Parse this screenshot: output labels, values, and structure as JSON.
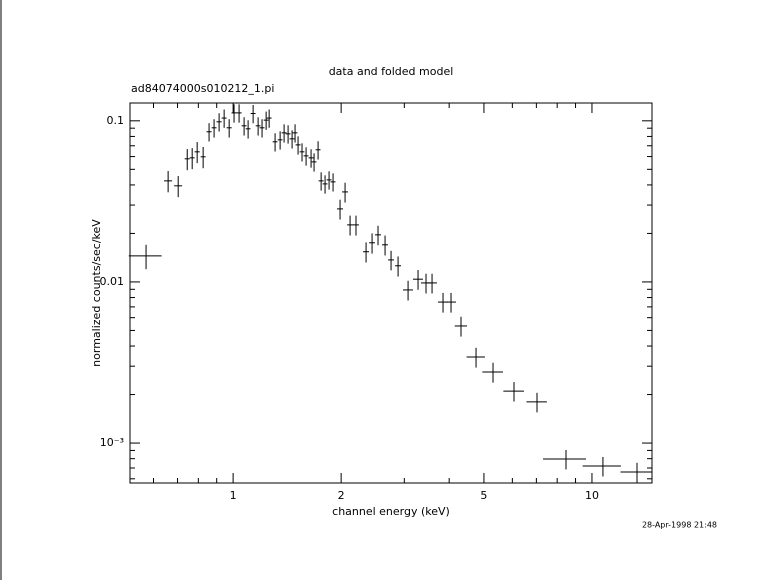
{
  "chart_data": {
    "type": "scatter",
    "title": "data and folded model",
    "subtitle": "ad84074000s010212_1.pi",
    "x_label": "channel energy (keV)",
    "y_label": "normalized counts/sec/keV",
    "timestamp": "28-Apr-1998 21:48",
    "xscale": "log",
    "yscale": "log",
    "color": "#000000",
    "xlim": [
      0.516,
      14.7
    ],
    "ylim": [
      0.000565,
      0.129
    ],
    "xticks": [
      1,
      2,
      5,
      10
    ],
    "xminorticks": [
      0.6,
      0.7,
      0.8,
      0.9,
      3,
      4,
      6,
      7,
      8,
      9
    ],
    "yticks": [
      {
        "value": 0.001,
        "label": "10⁻³"
      },
      0.01,
      0.1
    ],
    "yminorticks": [
      0.0006,
      0.0007,
      0.0008,
      0.0009,
      0.002,
      0.003,
      0.004,
      0.005,
      0.006,
      0.007,
      0.008,
      0.009,
      0.02,
      0.03,
      0.04,
      0.05,
      0.06,
      0.07,
      0.08,
      0.09
    ],
    "x": [
      0.572,
      0.659,
      0.703,
      0.745,
      0.769,
      0.794,
      0.825,
      0.857,
      0.885,
      0.914,
      0.944,
      0.975,
      1.006,
      1.039,
      1.073,
      1.101,
      1.137,
      1.174,
      1.204,
      1.236,
      1.26,
      1.309,
      1.352,
      1.387,
      1.423,
      1.46,
      1.488,
      1.517,
      1.556,
      1.597,
      1.649,
      1.681,
      1.725,
      1.759,
      1.804,
      1.851,
      1.899,
      1.986,
      2.051,
      2.118,
      2.2,
      2.347,
      2.439,
      2.534,
      2.651,
      2.755,
      2.882,
      3.073,
      3.276,
      3.448,
      3.584,
      3.846,
      4.048,
      4.316,
      4.753,
      5.3,
      6.064,
      7.028,
      8.466,
      10.73,
      13.35
    ],
    "xerr": [
      0.06,
      0.017,
      0.018,
      0.012,
      0.012,
      0.013,
      0.013,
      0.014,
      0.014,
      0.015,
      0.015,
      0.016,
      0.016,
      0.017,
      0.017,
      0.017,
      0.018,
      0.018,
      0.019,
      0.019,
      0.02,
      0.02,
      0.021,
      0.022,
      0.022,
      0.023,
      0.023,
      0.024,
      0.024,
      0.025,
      0.026,
      0.026,
      0.027,
      0.028,
      0.028,
      0.029,
      0.03,
      0.038,
      0.039,
      0.04,
      0.042,
      0.045,
      0.046,
      0.048,
      0.05,
      0.052,
      0.055,
      0.098,
      0.105,
      0.11,
      0.115,
      0.123,
      0.13,
      0.17,
      0.28,
      0.35,
      0.4,
      0.46,
      1.16,
      1.31,
      1.34
    ],
    "values": [
      0.0145,
      0.0424,
      0.0395,
      0.0581,
      0.0589,
      0.0642,
      0.0598,
      0.0855,
      0.0905,
      0.0986,
      0.104,
      0.0905,
      0.112,
      0.112,
      0.0931,
      0.0892,
      0.111,
      0.0931,
      0.0905,
      0.101,
      0.104,
      0.0741,
      0.0762,
      0.0842,
      0.083,
      0.0773,
      0.0842,
      0.0709,
      0.0642,
      0.0606,
      0.0589,
      0.0556,
      0.0661,
      0.0424,
      0.0406,
      0.043,
      0.0418,
      0.0284,
      0.0362,
      0.0226,
      0.0226,
      0.0154,
      0.0175,
      0.0196,
      0.017,
      0.0137,
      0.0126,
      0.00892,
      0.0104,
      0.00986,
      0.00986,
      0.0075,
      0.0075,
      0.00533,
      0.00342,
      0.00276,
      0.0021,
      0.0018,
      0.000796,
      0.00072,
      0.000661
    ],
    "yerr": [
      0.0025,
      0.0064,
      0.0059,
      0.0087,
      0.0088,
      0.0096,
      0.009,
      0.0111,
      0.0118,
      0.0128,
      0.0135,
      0.0118,
      0.0146,
      0.0146,
      0.0121,
      0.0116,
      0.0144,
      0.0121,
      0.0118,
      0.0131,
      0.0135,
      0.0096,
      0.0099,
      0.0109,
      0.0108,
      0.01,
      0.0109,
      0.0092,
      0.0083,
      0.0079,
      0.0077,
      0.0072,
      0.0086,
      0.0055,
      0.0053,
      0.0056,
      0.0054,
      0.004,
      0.0051,
      0.0032,
      0.0032,
      0.0022,
      0.0025,
      0.0027,
      0.0024,
      0.0019,
      0.0018,
      0.00125,
      0.00146,
      0.00138,
      0.00138,
      0.00105,
      0.00105,
      0.00075,
      0.00048,
      0.00039,
      0.00029,
      0.00025,
      0.00011,
      0.0001,
      9.3e-05
    ]
  }
}
